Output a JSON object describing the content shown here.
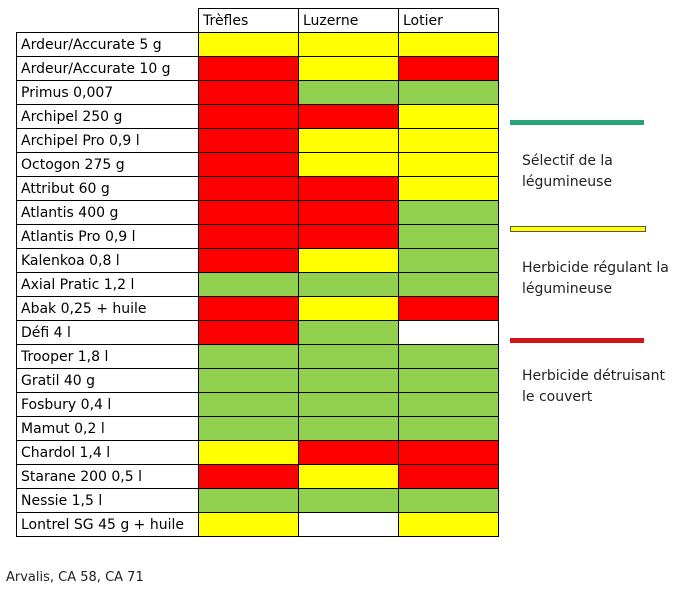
{
  "chart_data": {
    "type": "table",
    "columns": [
      "Trèfles",
      "Luzerne",
      "Lotier"
    ],
    "rows": [
      {
        "name": "Ardeur/Accurate 5 g",
        "values": [
          "yellow",
          "yellow",
          "yellow"
        ]
      },
      {
        "name": "Ardeur/Accurate 10 g",
        "values": [
          "red",
          "yellow",
          "red"
        ]
      },
      {
        "name": "Primus 0,007",
        "values": [
          "red",
          "green",
          "green"
        ]
      },
      {
        "name": "Archipel 250 g",
        "values": [
          "red",
          "red",
          "yellow"
        ]
      },
      {
        "name": "Archipel Pro 0,9 l",
        "values": [
          "red",
          "yellow",
          "yellow"
        ]
      },
      {
        "name": "Octogon 275 g",
        "values": [
          "red",
          "yellow",
          "yellow"
        ]
      },
      {
        "name": "Attribut 60 g",
        "values": [
          "red",
          "red",
          "yellow"
        ]
      },
      {
        "name": "Atlantis 400 g",
        "values": [
          "red",
          "red",
          "green"
        ]
      },
      {
        "name": "Atlantis Pro 0,9 l",
        "values": [
          "red",
          "red",
          "green"
        ]
      },
      {
        "name": "Kalenkoa 0,8 l",
        "values": [
          "red",
          "yellow",
          "green"
        ]
      },
      {
        "name": "Axial Pratic 1,2 l",
        "values": [
          "green",
          "green",
          "green"
        ]
      },
      {
        "name": "Abak 0,25 + huile",
        "values": [
          "red",
          "yellow",
          "red"
        ]
      },
      {
        "name": "Défi 4 l",
        "values": [
          "red",
          "green",
          "white"
        ]
      },
      {
        "name": "Trooper 1,8 l",
        "values": [
          "green",
          "green",
          "green"
        ]
      },
      {
        "name": "Gratil 40 g",
        "values": [
          "green",
          "green",
          "green"
        ]
      },
      {
        "name": "Fosbury 0,4 l",
        "values": [
          "green",
          "green",
          "green"
        ]
      },
      {
        "name": "Mamut 0,2 l",
        "values": [
          "green",
          "green",
          "green"
        ]
      },
      {
        "name": "Chardol 1,4 l",
        "values": [
          "yellow",
          "red",
          "red"
        ]
      },
      {
        "name": "Starane 200 0,5 l",
        "values": [
          "red",
          "yellow",
          "red"
        ]
      },
      {
        "name": "Nessie 1,5 l",
        "values": [
          "green",
          "green",
          "green"
        ]
      },
      {
        "name": "Lontrel SG 45 g + huile",
        "values": [
          "yellow",
          "white",
          "yellow"
        ]
      }
    ],
    "colors": {
      "yellow": "#ffff00",
      "red": "#ff0000",
      "green": "#92d050",
      "white": "#ffffff"
    },
    "legend": [
      {
        "label": "Sélectif de la légumineuse",
        "color": "#2aa37a"
      },
      {
        "label": "Herbicide régulant la légumineuse",
        "color": "#ffff00"
      },
      {
        "label": "Herbicide détruisant le couvert",
        "color": "#d4141c"
      }
    ]
  },
  "source": "Arvalis, CA 58, CA 71"
}
